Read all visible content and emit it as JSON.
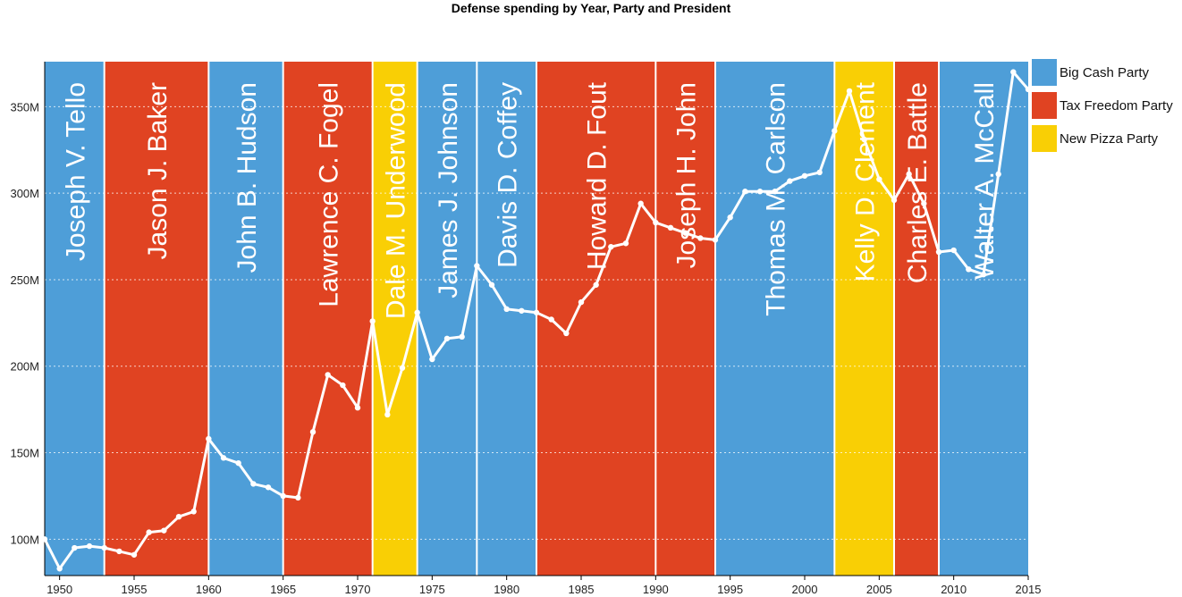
{
  "chart_data": {
    "type": "line",
    "title": "Defense spending by Year, Party and President",
    "xlabel": "",
    "ylabel": "",
    "xlim": [
      1949,
      2015
    ],
    "ylim": [
      79,
      376
    ],
    "x_ticks": [
      1950,
      1955,
      1960,
      1965,
      1970,
      1975,
      1980,
      1985,
      1990,
      1995,
      2000,
      2005,
      2010,
      2015
    ],
    "y_ticks": [
      {
        "value": 100,
        "label": "100M"
      },
      {
        "value": 150,
        "label": "150M"
      },
      {
        "value": 200,
        "label": "200M"
      },
      {
        "value": 250,
        "label": "250M"
      },
      {
        "value": 300,
        "label": "300M"
      },
      {
        "value": 350,
        "label": "350M"
      }
    ],
    "grid": "horizontal dotted",
    "parties": [
      {
        "name": "Big Cash Party",
        "color": "#4e9ed8"
      },
      {
        "name": "Tax Freedom Party",
        "color": "#e04322"
      },
      {
        "name": "New Pizza Party",
        "color": "#f9cf05"
      }
    ],
    "presidents": [
      {
        "name": "Joseph V. Tello",
        "party": "Big Cash Party",
        "start": 1949,
        "end": 1953
      },
      {
        "name": "Jason J. Baker",
        "party": "Tax Freedom Party",
        "start": 1953,
        "end": 1960
      },
      {
        "name": "John B. Hudson",
        "party": "Big Cash Party",
        "start": 1960,
        "end": 1965
      },
      {
        "name": "Lawrence C. Fogel",
        "party": "Tax Freedom Party",
        "start": 1965,
        "end": 1971
      },
      {
        "name": "Dale M. Underwood",
        "party": "New Pizza Party",
        "start": 1971,
        "end": 1974
      },
      {
        "name": "James J. Johnson",
        "party": "Big Cash Party",
        "start": 1974,
        "end": 1978
      },
      {
        "name": "Davis D. Coffey",
        "party": "Big Cash Party",
        "start": 1978,
        "end": 1982
      },
      {
        "name": "Howard D. Fout",
        "party": "Tax Freedom Party",
        "start": 1982,
        "end": 1990
      },
      {
        "name": "Joseph H. John",
        "party": "Tax Freedom Party",
        "start": 1990,
        "end": 1994
      },
      {
        "name": "Thomas M. Carlson",
        "party": "Big Cash Party",
        "start": 1994,
        "end": 2002
      },
      {
        "name": "Kelly D. Clement",
        "party": "New Pizza Party",
        "start": 2002,
        "end": 2006
      },
      {
        "name": "Charles E. Battle",
        "party": "Tax Freedom Party",
        "start": 2006,
        "end": 2009
      },
      {
        "name": "Walter A. McCall",
        "party": "Big Cash Party",
        "start": 2009,
        "end": 2015
      }
    ],
    "series": [
      {
        "name": "Defense spending",
        "color": "#ffffff",
        "x": [
          1949,
          1950,
          1951,
          1952,
          1953,
          1954,
          1955,
          1956,
          1957,
          1958,
          1959,
          1960,
          1961,
          1962,
          1963,
          1964,
          1965,
          1966,
          1967,
          1968,
          1969,
          1970,
          1971,
          1972,
          1973,
          1974,
          1975,
          1976,
          1977,
          1978,
          1979,
          1980,
          1981,
          1982,
          1983,
          1984,
          1985,
          1986,
          1987,
          1988,
          1989,
          1990,
          1991,
          1992,
          1993,
          1994,
          1995,
          1996,
          1997,
          1998,
          1999,
          2000,
          2001,
          2002,
          2003,
          2004,
          2005,
          2006,
          2007,
          2008,
          2009,
          2010,
          2011,
          2012,
          2013,
          2014,
          2015
        ],
        "values": [
          100,
          83,
          95,
          96,
          95,
          93,
          91,
          104,
          105,
          113,
          116,
          158,
          147,
          144,
          132,
          130,
          125,
          124,
          162,
          195,
          189,
          176,
          226,
          172,
          199,
          231,
          204,
          216,
          217,
          258,
          247,
          233,
          232,
          231,
          227,
          219,
          237,
          247,
          269,
          271,
          294,
          283,
          280,
          277,
          274,
          273,
          286,
          301,
          301,
          301,
          307,
          310,
          312,
          336,
          359,
          331,
          308,
          296,
          311,
          294,
          266,
          267,
          256,
          253,
          311,
          370,
          360
        ]
      }
    ]
  }
}
